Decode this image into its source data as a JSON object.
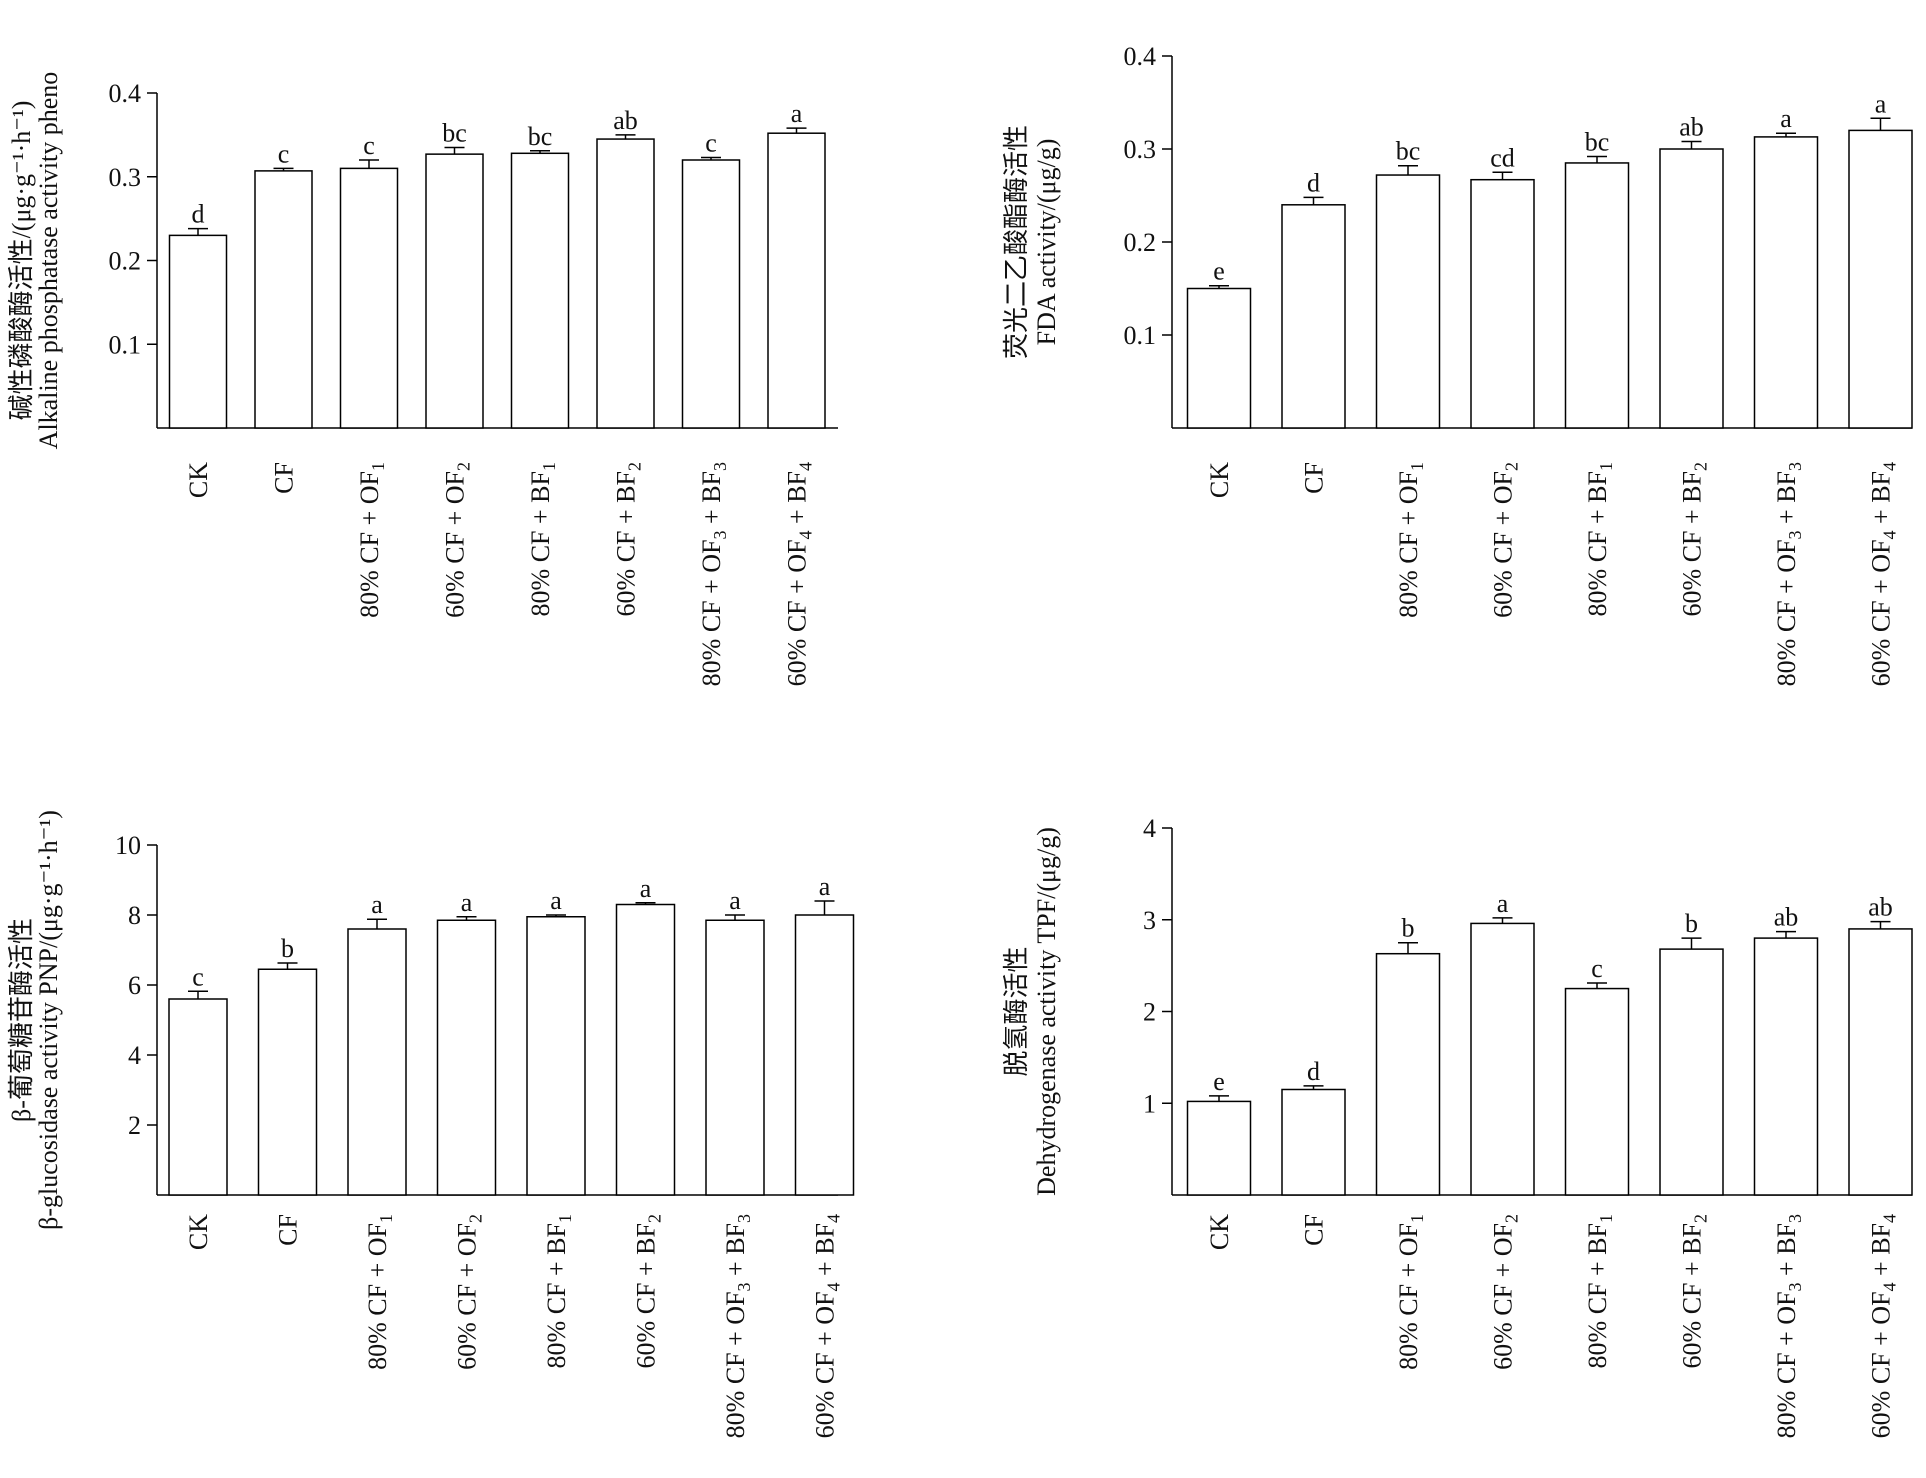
{
  "chart_data": [
    {
      "type": "bar",
      "panel": "top-left",
      "ylabel_cn": "碱性磷酸酶活性/(μg·g⁻¹·h⁻¹)",
      "ylabel_en": "Alkaline phosphatase activity  pheno",
      "ylim": [
        0,
        0.4
      ],
      "yticks": [
        0.1,
        0.2,
        0.3,
        0.4
      ],
      "ytick_labels": [
        "0.1",
        "0.2",
        "0.3",
        "0.4"
      ],
      "values": [
        0.23,
        0.307,
        0.31,
        0.327,
        0.328,
        0.345,
        0.32,
        0.352
      ],
      "errors": [
        0.008,
        0.003,
        0.01,
        0.008,
        0.003,
        0.005,
        0.003,
        0.006
      ],
      "letters": [
        "d",
        "c",
        "c",
        "bc",
        "bc",
        "ab",
        "c",
        "a"
      ]
    },
    {
      "type": "bar",
      "panel": "top-right",
      "ylabel_cn": "荧光二乙酸酯酶活性",
      "ylabel_en": "FDA activity/(μg/g)",
      "ylim": [
        0,
        0.4
      ],
      "yticks": [
        0.1,
        0.2,
        0.3,
        0.4
      ],
      "ytick_labels": [
        "0.1",
        "0.2",
        "0.3",
        "0.4"
      ],
      "values": [
        0.15,
        0.24,
        0.272,
        0.267,
        0.285,
        0.3,
        0.313,
        0.32
      ],
      "errors": [
        0.003,
        0.008,
        0.01,
        0.008,
        0.007,
        0.008,
        0.004,
        0.013
      ],
      "letters": [
        "e",
        "d",
        "bc",
        "cd",
        "bc",
        "ab",
        "a",
        "a"
      ]
    },
    {
      "type": "bar",
      "panel": "bottom-left",
      "ylabel_cn": "β-葡萄糖苷酶活性",
      "ylabel_en": "β-glucosidase activity PNP/(μg·g⁻¹·h⁻¹)",
      "ylim": [
        0,
        10
      ],
      "yticks": [
        2,
        4,
        6,
        8,
        10
      ],
      "ytick_labels": [
        "2",
        "4",
        "6",
        "8",
        "10"
      ],
      "values": [
        5.6,
        6.45,
        7.6,
        7.85,
        7.95,
        8.3,
        7.85,
        8.0
      ],
      "errors": [
        0.22,
        0.18,
        0.28,
        0.1,
        0.05,
        0.05,
        0.15,
        0.4
      ],
      "letters": [
        "c",
        "b",
        "a",
        "a",
        "a",
        "a",
        "a",
        "a"
      ]
    },
    {
      "type": "bar",
      "panel": "bottom-right",
      "ylabel_cn": "脱氢酶活性",
      "ylabel_en": "Dehydrogenase activity TPF/(μg/g)",
      "ylim": [
        0,
        4
      ],
      "yticks": [
        1,
        2,
        3,
        4
      ],
      "ytick_labels": [
        "1",
        "2",
        "3",
        "4"
      ],
      "values": [
        1.02,
        1.15,
        2.63,
        2.96,
        2.25,
        2.68,
        2.8,
        2.9
      ],
      "errors": [
        0.06,
        0.04,
        0.12,
        0.06,
        0.06,
        0.12,
        0.07,
        0.08
      ],
      "letters": [
        "e",
        "d",
        "b",
        "a",
        "c",
        "b",
        "ab",
        "ab"
      ]
    }
  ],
  "categories": [
    {
      "main": "CK",
      "sub": "",
      "tail": ""
    },
    {
      "main": "CF",
      "sub": "",
      "tail": ""
    },
    {
      "main": "80% CF + OF",
      "sub": "1",
      "tail": ""
    },
    {
      "main": "60% CF + OF",
      "sub": "2",
      "tail": ""
    },
    {
      "main": "80% CF + BF",
      "sub": "1",
      "tail": ""
    },
    {
      "main": "60% CF + BF",
      "sub": "2",
      "tail": ""
    },
    {
      "main": "80% CF + OF",
      "sub": "3",
      "tail": " + BF3"
    },
    {
      "main": "60% CF + OF",
      "sub": "4",
      "tail": " + BF4"
    }
  ],
  "bar_fill": "#ffffff",
  "stroke_color": "#000000"
}
